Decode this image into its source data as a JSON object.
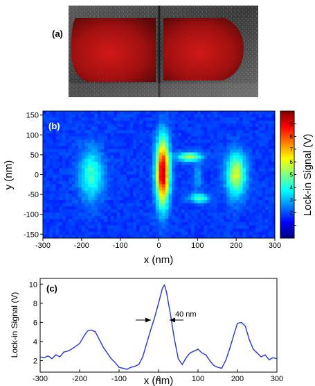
{
  "panel_a": {
    "label": "(a)"
  },
  "chart_data": [
    {
      "type": "heatmap",
      "panel_label": "(b)",
      "xlabel": "x (nm)",
      "ylabel": "y (nm)",
      "xlim": [
        -300,
        300
      ],
      "ylim": [
        -160,
        160
      ],
      "xticks": [
        -300,
        -200,
        -100,
        0,
        100,
        200,
        300
      ],
      "yticks": [
        150,
        100,
        50,
        0,
        -50,
        -100,
        -150
      ],
      "colorbar": {
        "label": "Lock-in Signal (V)",
        "range": [
          0,
          10
        ],
        "ticks": [
          1,
          2,
          3,
          4,
          5,
          6,
          7,
          8,
          9
        ],
        "colors": [
          "#000080",
          "#0000ff",
          "#0080ff",
          "#00ffff",
          "#80ff80",
          "#ffff00",
          "#ff8000",
          "#ff0000",
          "#800000"
        ]
      },
      "background_value": 1.8,
      "features": [
        {
          "x": -175,
          "y": 0,
          "peak": 4.3
        },
        {
          "x": 10,
          "y": 5,
          "peak": 9.5
        },
        {
          "x": 80,
          "y": 45,
          "peak": 5.5
        },
        {
          "x": 105,
          "y": -60,
          "peak": 4.5
        },
        {
          "x": 100,
          "y": -5,
          "peak": 2.9
        },
        {
          "x": 200,
          "y": 0,
          "peak": 5.8
        }
      ]
    },
    {
      "type": "line",
      "panel_label": "(c)",
      "xlabel": "x (nm)",
      "ylabel": "Lock-in Signal (V)",
      "xlim": [
        -300,
        300
      ],
      "ylim": [
        0.8,
        10.6
      ],
      "xticks": [
        -300,
        -200,
        -100,
        0,
        100,
        200,
        300
      ],
      "yticks": [
        2,
        4,
        6,
        8,
        10
      ],
      "annotation": "40 nm",
      "series": [
        {
          "color": "#2f3fd0",
          "x": [
            -300,
            -290,
            -280,
            -270,
            -260,
            -250,
            -240,
            -230,
            -220,
            -210,
            -200,
            -190,
            -180,
            -170,
            -160,
            -150,
            -140,
            -130,
            -120,
            -110,
            -100,
            -90,
            -80,
            -70,
            -60,
            -50,
            -40,
            -30,
            -20,
            -10,
            0,
            10,
            15,
            20,
            30,
            40,
            50,
            60,
            70,
            80,
            90,
            100,
            110,
            120,
            130,
            140,
            150,
            160,
            170,
            180,
            190,
            200,
            210,
            220,
            230,
            240,
            250,
            260,
            270,
            280,
            290,
            300
          ],
          "values": [
            2.4,
            2.3,
            2.5,
            2.2,
            2.6,
            2.4,
            2.9,
            3.0,
            3.2,
            3.5,
            3.8,
            4.5,
            5.1,
            5.2,
            5.0,
            4.2,
            3.4,
            2.8,
            2.2,
            1.8,
            1.3,
            1.2,
            1.1,
            1.3,
            1.4,
            1.6,
            2.4,
            3.8,
            5.2,
            6.5,
            8.0,
            9.6,
            9.9,
            9.2,
            6.9,
            4.3,
            2.2,
            1.6,
            2.3,
            2.8,
            3.0,
            3.2,
            2.8,
            2.6,
            2.0,
            1.5,
            1.3,
            1.2,
            2.0,
            3.2,
            4.6,
            5.9,
            6.0,
            5.6,
            4.2,
            3.2,
            2.8,
            2.4,
            2.6,
            2.1,
            2.3,
            2.2
          ]
        }
      ]
    }
  ]
}
